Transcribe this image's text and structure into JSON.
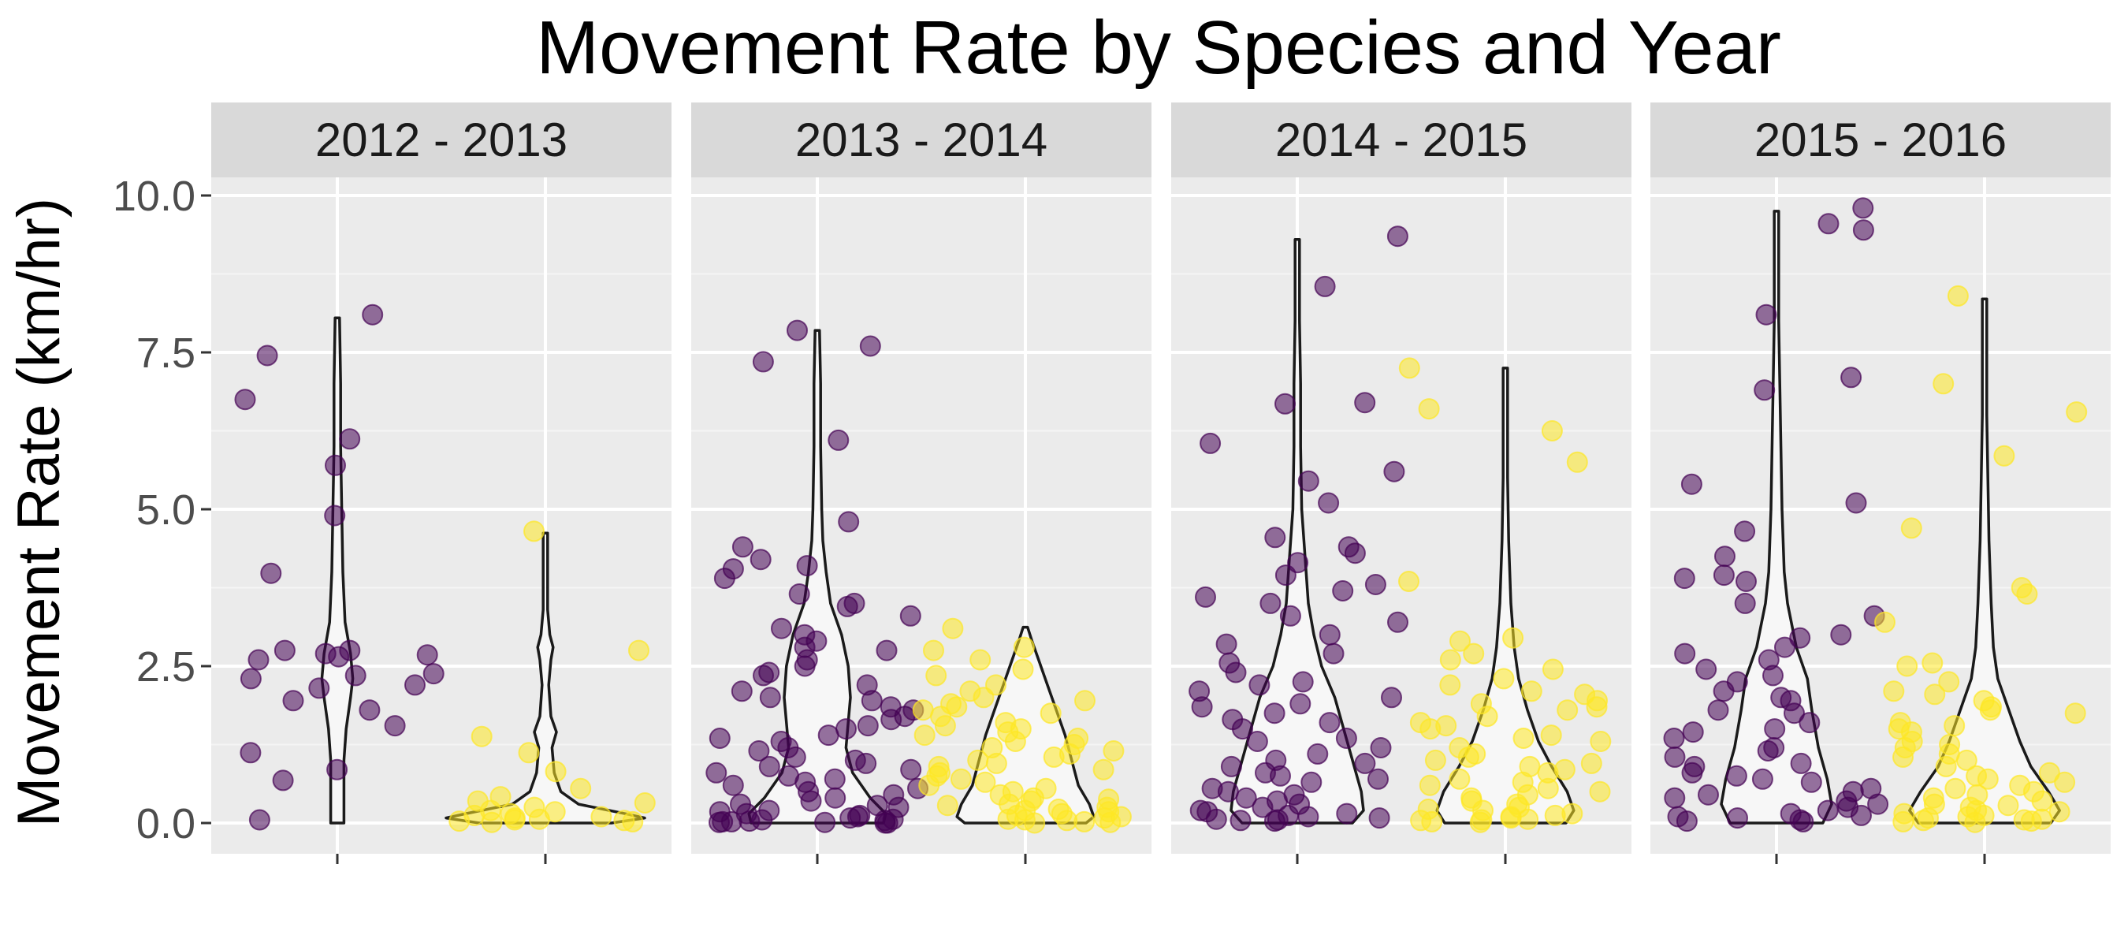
{
  "chart_data": {
    "type": "violin",
    "title": "Movement Rate by Species and Year",
    "xlabel": "",
    "ylabel": "Movement Rate (km/hr)",
    "ylim": [
      -0.5,
      10.4
    ],
    "yticks": [
      0,
      2.5,
      5,
      7.5,
      10
    ],
    "ytick_labels": [
      "0.0",
      "2.5",
      "5.0",
      "7.5",
      "10.0"
    ],
    "grid": true,
    "legend": "none",
    "colors": {
      "species_a": "#440154",
      "species_b": "#fde725",
      "panel_bg": "#ebebeb",
      "strip_bg": "#d9d9d9",
      "violin_fill": "#f7f7f7",
      "violin_line": "#1a1a1a"
    },
    "facets": [
      {
        "label": "2012 - 2013",
        "species_a_points": [
          5.7,
          2.75,
          2.6,
          2.75,
          2.7,
          2.65,
          2.3,
          2.2,
          2.35,
          2.15,
          1.95,
          1.55,
          1.8,
          1.12,
          0.85,
          0.68,
          8.1,
          7.45,
          6.12,
          4.9,
          3.98,
          6.75,
          2.68,
          2.38,
          0.05
        ],
        "species_b_points": [
          4.65,
          2.75,
          1.38,
          1.12,
          0.82,
          0.55,
          0.42,
          0.35,
          0.32,
          0.25,
          0.2,
          0.18,
          0.15,
          0.12,
          0.1,
          0.08,
          0.05,
          0.03,
          0.02,
          0.01,
          0.04,
          0.06
        ],
        "species_a_violin": {
          "max": 8.05,
          "profile": [
            [
              0,
              0.06
            ],
            [
              0.5,
              0.06
            ],
            [
              1,
              0.06
            ],
            [
              1.5,
              0.08
            ],
            [
              2,
              0.12
            ],
            [
              2.3,
              0.14
            ],
            [
              2.7,
              0.12
            ],
            [
              3.2,
              0.07
            ],
            [
              4,
              0.05
            ],
            [
              5,
              0.04
            ],
            [
              6,
              0.03
            ],
            [
              7,
              0.03
            ],
            [
              8.05,
              0.02
            ]
          ]
        },
        "species_b_violin": {
          "max": 4.62,
          "profile": [
            [
              0,
              0.6
            ],
            [
              0.08,
              0.9
            ],
            [
              0.15,
              0.72
            ],
            [
              0.3,
              0.3
            ],
            [
              0.5,
              0.14
            ],
            [
              0.8,
              0.08
            ],
            [
              1.2,
              0.06
            ],
            [
              1.45,
              0.1
            ],
            [
              1.7,
              0.05
            ],
            [
              2.2,
              0.03
            ],
            [
              2.6,
              0.05
            ],
            [
              2.8,
              0.07
            ],
            [
              3.0,
              0.04
            ],
            [
              3.4,
              0.02
            ],
            [
              4.0,
              0.02
            ],
            [
              4.62,
              0.02
            ]
          ]
        }
      },
      {
        "label": "2013 - 2014",
        "species_a_points": [
          7.35,
          6.1,
          7.85,
          7.6,
          4.8,
          4.4,
          4.2,
          4.1,
          4.05,
          3.9,
          3.65,
          3.5,
          3.45,
          3.3,
          3.1,
          3.0,
          2.9,
          2.8,
          2.75,
          2.6,
          2.5,
          2.4,
          2.35,
          2.2,
          2.1,
          2.0,
          1.95,
          1.85,
          1.8,
          1.7,
          1.65,
          1.55,
          1.5,
          1.4,
          1.35,
          1.3,
          1.2,
          1.15,
          1.05,
          1.0,
          0.95,
          0.9,
          0.85,
          0.8,
          0.75,
          0.7,
          0.65,
          0.6,
          0.55,
          0.5,
          0.45,
          0.4,
          0.35,
          0.3,
          0.28,
          0.25,
          0.2,
          0.18,
          0.15,
          0.12,
          0.1,
          0.08,
          0.06,
          0.05,
          0.04,
          0.03,
          0.02,
          0.02,
          0.01,
          0.01,
          0.0,
          0.0
        ],
        "species_b_points": [
          3.1,
          2.8,
          2.75,
          2.6,
          2.45,
          2.35,
          2.2,
          2.1,
          2.0,
          1.95,
          1.9,
          1.85,
          1.8,
          1.75,
          1.7,
          1.6,
          1.55,
          1.5,
          1.45,
          1.4,
          1.35,
          1.3,
          1.25,
          1.2,
          1.15,
          1.1,
          1.05,
          1.0,
          0.95,
          0.9,
          0.85,
          0.8,
          0.75,
          0.7,
          0.65,
          0.6,
          0.55,
          0.5,
          0.45,
          0.4,
          0.38,
          0.35,
          0.3,
          0.28,
          0.25,
          0.22,
          0.2,
          0.18,
          0.15,
          0.12,
          0.1,
          0.08,
          0.06,
          0.05,
          0.04,
          0.02,
          0.01,
          0.0
        ],
        "species_a_violin": {
          "max": 7.85,
          "profile": [
            [
              0,
              0.6
            ],
            [
              0.15,
              0.62
            ],
            [
              0.4,
              0.48
            ],
            [
              0.8,
              0.32
            ],
            [
              1.2,
              0.26
            ],
            [
              1.6,
              0.28
            ],
            [
              2.0,
              0.3
            ],
            [
              2.5,
              0.28
            ],
            [
              3.0,
              0.22
            ],
            [
              3.5,
              0.12
            ],
            [
              4.0,
              0.08
            ],
            [
              4.5,
              0.05
            ],
            [
              5.0,
              0.04
            ],
            [
              6.0,
              0.03
            ],
            [
              7.0,
              0.03
            ],
            [
              7.85,
              0.02
            ]
          ]
        },
        "species_b_violin": {
          "max": 3.12,
          "profile": [
            [
              0,
              0.55
            ],
            [
              0.1,
              0.62
            ],
            [
              0.3,
              0.58
            ],
            [
              0.6,
              0.48
            ],
            [
              1.0,
              0.42
            ],
            [
              1.4,
              0.36
            ],
            [
              1.8,
              0.28
            ],
            [
              2.2,
              0.2
            ],
            [
              2.6,
              0.12
            ],
            [
              2.9,
              0.06
            ],
            [
              3.12,
              0.02
            ]
          ]
        }
      },
      {
        "label": "2014 - 2015",
        "species_a_points": [
          9.35,
          8.55,
          6.7,
          6.68,
          6.05,
          5.6,
          5.45,
          5.1,
          4.55,
          4.4,
          4.3,
          4.15,
          3.95,
          3.8,
          3.7,
          3.6,
          3.5,
          3.3,
          3.2,
          3.0,
          2.85,
          2.7,
          2.55,
          2.4,
          2.25,
          2.2,
          2.1,
          2.0,
          1.9,
          1.85,
          1.75,
          1.65,
          1.6,
          1.5,
          1.35,
          1.3,
          1.2,
          1.1,
          1.0,
          0.95,
          0.9,
          0.8,
          0.75,
          0.7,
          0.65,
          0.55,
          0.5,
          0.45,
          0.4,
          0.35,
          0.3,
          0.25,
          0.2,
          0.18,
          0.15,
          0.12,
          0.1,
          0.08,
          0.06,
          0.05,
          0.04,
          0.03
        ],
        "species_b_points": [
          7.25,
          6.6,
          6.25,
          5.75,
          3.85,
          2.95,
          2.9,
          2.7,
          2.6,
          2.45,
          2.3,
          2.2,
          2.1,
          2.05,
          1.95,
          1.9,
          1.85,
          1.8,
          1.7,
          1.6,
          1.55,
          1.5,
          1.4,
          1.35,
          1.3,
          1.2,
          1.1,
          1.05,
          1.0,
          0.95,
          0.9,
          0.85,
          0.8,
          0.7,
          0.65,
          0.6,
          0.55,
          0.5,
          0.45,
          0.4,
          0.35,
          0.3,
          0.25,
          0.22,
          0.2,
          0.15,
          0.12,
          0.1,
          0.08,
          0.06,
          0.05,
          0.04,
          0.02,
          0.01
        ],
        "species_a_violin": {
          "max": 9.3,
          "profile": [
            [
              0,
              0.5
            ],
            [
              0.2,
              0.6
            ],
            [
              0.5,
              0.58
            ],
            [
              1.0,
              0.5
            ],
            [
              1.5,
              0.42
            ],
            [
              2.0,
              0.34
            ],
            [
              2.5,
              0.22
            ],
            [
              3.0,
              0.15
            ],
            [
              3.5,
              0.1
            ],
            [
              4.0,
              0.08
            ],
            [
              4.5,
              0.06
            ],
            [
              5.0,
              0.04
            ],
            [
              6.0,
              0.03
            ],
            [
              7.0,
              0.03
            ],
            [
              8.0,
              0.02
            ],
            [
              9.3,
              0.02
            ]
          ]
        },
        "species_b_violin": {
          "max": 7.25,
          "profile": [
            [
              0,
              0.55
            ],
            [
              0.2,
              0.62
            ],
            [
              0.5,
              0.56
            ],
            [
              0.9,
              0.42
            ],
            [
              1.3,
              0.3
            ],
            [
              1.8,
              0.2
            ],
            [
              2.3,
              0.12
            ],
            [
              2.8,
              0.08
            ],
            [
              3.5,
              0.05
            ],
            [
              4.5,
              0.03
            ],
            [
              5.5,
              0.02
            ],
            [
              6.5,
              0.02
            ],
            [
              7.25,
              0.02
            ]
          ]
        }
      },
      {
        "label": "2015 - 2016",
        "species_a_points": [
          9.8,
          9.55,
          9.45,
          8.1,
          7.1,
          6.9,
          5.4,
          5.1,
          4.65,
          4.25,
          3.95,
          3.9,
          3.85,
          3.5,
          3.3,
          3.0,
          2.95,
          2.8,
          2.7,
          2.6,
          2.45,
          2.35,
          2.25,
          2.1,
          2.0,
          1.95,
          1.8,
          1.75,
          1.6,
          1.5,
          1.45,
          1.35,
          1.2,
          1.15,
          1.05,
          0.95,
          0.9,
          0.8,
          0.75,
          0.7,
          0.65,
          0.55,
          0.5,
          0.45,
          0.4,
          0.35,
          0.3,
          0.25,
          0.2,
          0.15,
          0.12,
          0.1,
          0.08,
          0.05,
          0.03,
          0.02
        ],
        "species_b_points": [
          8.4,
          7.0,
          6.55,
          5.85,
          4.7,
          3.75,
          3.65,
          3.2,
          2.55,
          2.5,
          2.25,
          2.1,
          2.05,
          1.95,
          1.85,
          1.8,
          1.75,
          1.6,
          1.55,
          1.5,
          1.45,
          1.3,
          1.25,
          1.2,
          1.1,
          1.05,
          1.0,
          0.9,
          0.8,
          0.75,
          0.7,
          0.65,
          0.6,
          0.55,
          0.5,
          0.45,
          0.4,
          0.35,
          0.3,
          0.28,
          0.25,
          0.2,
          0.18,
          0.15,
          0.12,
          0.1,
          0.08,
          0.06,
          0.05,
          0.04,
          0.03,
          0.02,
          0.01
        ],
        "species_a_violin": {
          "max": 9.75,
          "profile": [
            [
              0,
              0.42
            ],
            [
              0.3,
              0.5
            ],
            [
              0.7,
              0.46
            ],
            [
              1.2,
              0.38
            ],
            [
              1.8,
              0.32
            ],
            [
              2.3,
              0.28
            ],
            [
              2.8,
              0.18
            ],
            [
              3.5,
              0.1
            ],
            [
              4.0,
              0.07
            ],
            [
              5.0,
              0.05
            ],
            [
              6.0,
              0.04
            ],
            [
              7.0,
              0.03
            ],
            [
              8.0,
              0.02
            ],
            [
              9.0,
              0.02
            ],
            [
              9.75,
              0.02
            ]
          ]
        },
        "species_b_violin": {
          "max": 8.35,
          "profile": [
            [
              0,
              0.6
            ],
            [
              0.2,
              0.68
            ],
            [
              0.5,
              0.58
            ],
            [
              0.9,
              0.42
            ],
            [
              1.3,
              0.32
            ],
            [
              1.8,
              0.22
            ],
            [
              2.3,
              0.12
            ],
            [
              2.8,
              0.08
            ],
            [
              3.5,
              0.06
            ],
            [
              4.5,
              0.04
            ],
            [
              5.5,
              0.03
            ],
            [
              6.5,
              0.02
            ],
            [
              7.5,
              0.02
            ],
            [
              8.35,
              0.02
            ]
          ]
        }
      }
    ]
  }
}
